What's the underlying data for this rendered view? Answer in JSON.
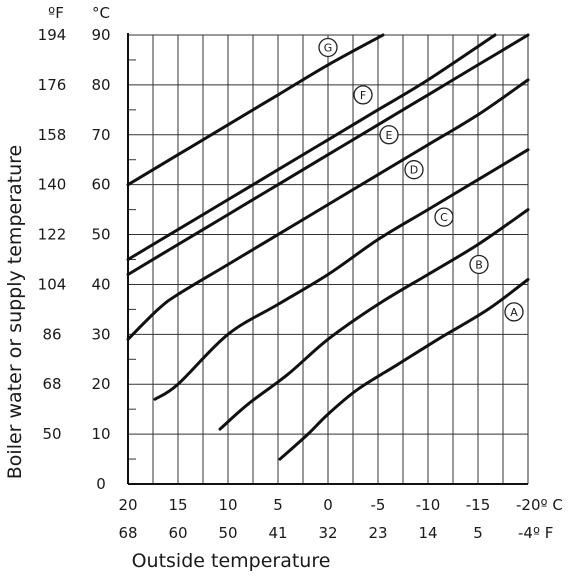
{
  "chart_data": {
    "type": "line",
    "title": "",
    "xlabel": "Outside temperature",
    "ylabel": "Boiler water or supply temperature",
    "x_unit_c": "°C",
    "x_unit_f": "°F",
    "y_unit_f": "ºF",
    "y_unit_c": "°C",
    "xlim": [
      20,
      -20
    ],
    "ylim": [
      0,
      90
    ],
    "grid": true,
    "x_ticks_c": [
      "20",
      "15",
      "10",
      "5",
      "0",
      "-5",
      "-10",
      "-15",
      "-20º C"
    ],
    "x_ticks_f": [
      "68",
      "60",
      "50",
      "41",
      "32",
      "23",
      "14",
      "5",
      "-4º F"
    ],
    "y_ticks_c": [
      "0",
      "10",
      "20",
      "30",
      "40",
      "50",
      "60",
      "70",
      "80",
      "90"
    ],
    "y_ticks_f": [
      "",
      "50",
      "68",
      "86",
      "104",
      "122",
      "140",
      "158",
      "176",
      "194"
    ],
    "series": [
      {
        "name": "A",
        "points": [
          [
            4.8,
            5
          ],
          [
            2,
            10
          ],
          [
            0,
            14
          ],
          [
            -3,
            19
          ],
          [
            -7,
            24
          ],
          [
            -11,
            29
          ],
          [
            -16,
            35
          ],
          [
            -20,
            41
          ]
        ],
        "label_at": [
          -18.6,
          34.5
        ]
      },
      {
        "name": "B",
        "points": [
          [
            10.8,
            11
          ],
          [
            8,
            16
          ],
          [
            4,
            22
          ],
          [
            0,
            29
          ],
          [
            -5,
            36
          ],
          [
            -10,
            42
          ],
          [
            -15,
            48
          ],
          [
            -20,
            55
          ]
        ],
        "label_at": [
          -15.1,
          44
        ]
      },
      {
        "name": "C",
        "points": [
          [
            17.3,
            17
          ],
          [
            15,
            20
          ],
          [
            10,
            30
          ],
          [
            5,
            36
          ],
          [
            0,
            42
          ],
          [
            -5,
            49
          ],
          [
            -10,
            55
          ],
          [
            -15,
            61
          ],
          [
            -20,
            67
          ]
        ],
        "label_at": [
          -11.6,
          53.5
        ]
      },
      {
        "name": "D",
        "points": [
          [
            20,
            29
          ],
          [
            17,
            35
          ],
          [
            15,
            38
          ],
          [
            10,
            44
          ],
          [
            5,
            50
          ],
          [
            0,
            56
          ],
          [
            -5,
            62
          ],
          [
            -10,
            68
          ],
          [
            -15,
            74
          ],
          [
            -20,
            81
          ]
        ],
        "label_at": [
          -8.6,
          63
        ]
      },
      {
        "name": "E",
        "points": [
          [
            20,
            42
          ],
          [
            15,
            48
          ],
          [
            10,
            54
          ],
          [
            5,
            60
          ],
          [
            0,
            66
          ],
          [
            -5,
            72
          ],
          [
            -10,
            78
          ],
          [
            -15,
            84
          ],
          [
            -20,
            90
          ]
        ],
        "label_at": [
          -6.1,
          70
        ]
      },
      {
        "name": "F",
        "points": [
          [
            20,
            45
          ],
          [
            15,
            51
          ],
          [
            10,
            57
          ],
          [
            5,
            63
          ],
          [
            0,
            69
          ],
          [
            -5,
            75
          ],
          [
            -10,
            81
          ],
          [
            -16.7,
            90
          ]
        ],
        "label_at": [
          -3.5,
          78
        ]
      },
      {
        "name": "G",
        "points": [
          [
            20,
            60
          ],
          [
            15,
            66
          ],
          [
            10,
            72
          ],
          [
            5,
            78
          ],
          [
            0,
            84
          ],
          [
            -5.5,
            90
          ]
        ],
        "label_at": [
          0,
          87.5
        ]
      }
    ]
  }
}
